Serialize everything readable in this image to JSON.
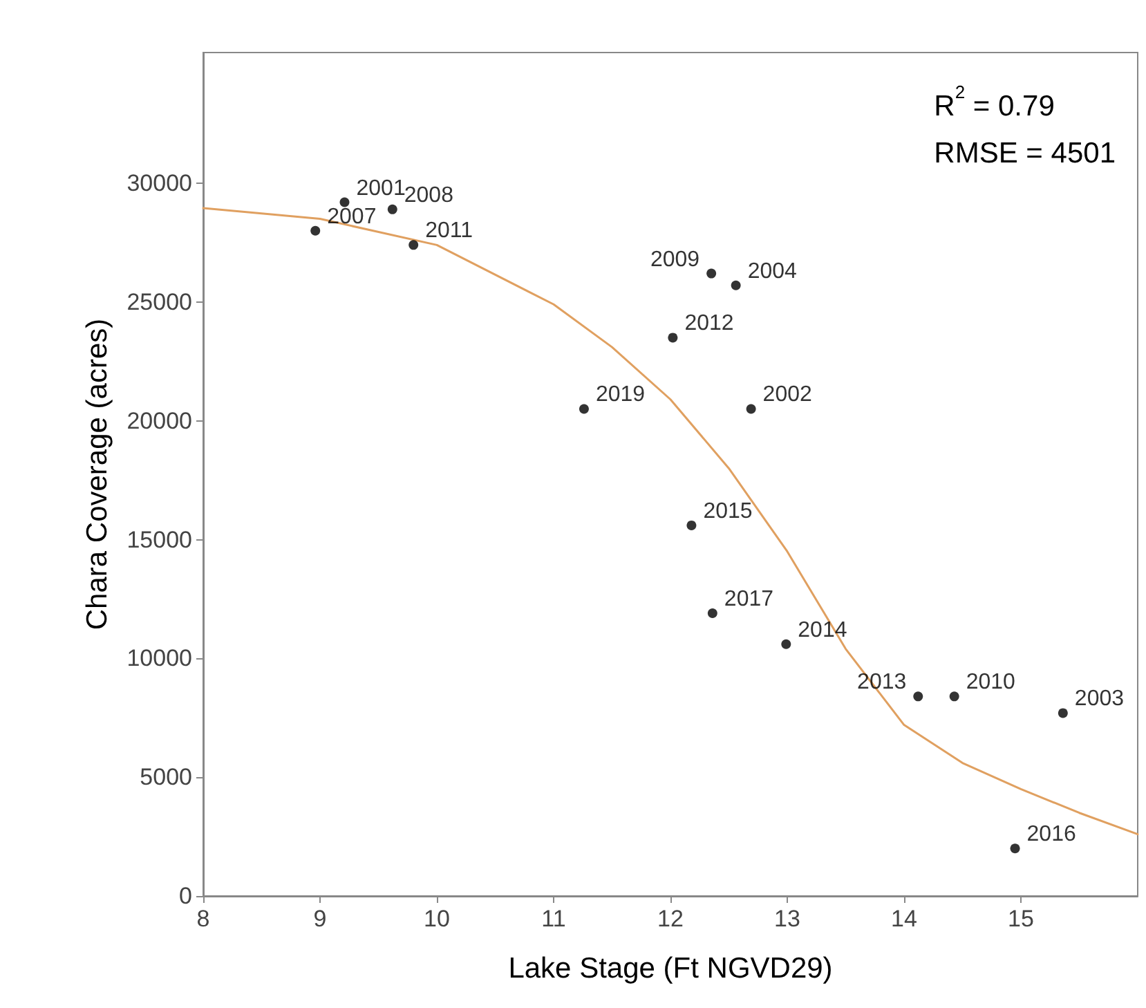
{
  "chart_data": {
    "type": "scatter",
    "xlabel": "Lake Stage (Ft NGVD29)",
    "ylabel": "Chara Coverage (acres)",
    "xlim": [
      8,
      16
    ],
    "xticks": [
      8,
      9,
      10,
      11,
      12,
      13,
      14,
      15
    ],
    "ylim": [
      0,
      35500
    ],
    "yticks": [
      0,
      5000,
      10000,
      15000,
      20000,
      25000,
      30000
    ],
    "grid": false,
    "annotations": [
      "R$^{2}$ = 0.79",
      "RMSE = 4501",
      {
        "text": "2001",
        "x": 9.21,
        "y": 29200
      },
      {
        "text": "2007",
        "x": 8.96,
        "y": 28000
      },
      {
        "text": "2008",
        "x": 9.62,
        "y": 28900
      },
      {
        "text": "2011",
        "x": 9.8,
        "y": 27400
      },
      {
        "text": "2009",
        "x": 12.35,
        "y": 26200
      },
      {
        "text": "2004",
        "x": 12.56,
        "y": 25700
      },
      {
        "text": "2012",
        "x": 12.02,
        "y": 23500
      },
      {
        "text": "2019",
        "x": 11.26,
        "y": 20500
      },
      {
        "text": "2002",
        "x": 12.69,
        "y": 20500
      },
      {
        "text": "2015",
        "x": 12.18,
        "y": 15600
      },
      {
        "text": "2017",
        "x": 12.36,
        "y": 11900
      },
      {
        "text": "2014",
        "x": 12.99,
        "y": 10600
      },
      {
        "text": "2013",
        "x": 14.12,
        "y": 8400
      },
      {
        "text": "2010",
        "x": 14.43,
        "y": 8400
      },
      {
        "text": "2003",
        "x": 15.36,
        "y": 7700
      },
      {
        "text": "2016",
        "x": 14.95,
        "y": 2000
      }
    ],
    "series": [
      {
        "type": "scatter",
        "color": "#000000",
        "marker": "circle",
        "x": [
          9.21,
          8.96,
          9.62,
          9.8,
          12.35,
          12.56,
          12.02,
          11.26,
          12.69,
          12.18,
          12.36,
          12.99,
          14.12,
          14.43,
          15.36,
          14.95
        ],
        "values": [
          29200,
          28000,
          28900,
          27400,
          26200,
          25700,
          23500,
          20500,
          20500,
          15600,
          11900,
          10600,
          8400,
          8400,
          7700,
          2000
        ]
      },
      {
        "type": "line",
        "color": "#e0a060",
        "marker": "none",
        "line_style": "solid",
        "x": [
          8,
          9,
          10,
          11,
          11.5,
          12,
          12.5,
          13,
          13.5,
          14,
          14.5,
          15,
          15.5,
          16
        ],
        "values": [
          28950,
          28500,
          27400,
          24900,
          23100,
          20900,
          18000,
          14500,
          10400,
          7200,
          5600,
          4500,
          3500,
          2600
        ]
      }
    ]
  }
}
